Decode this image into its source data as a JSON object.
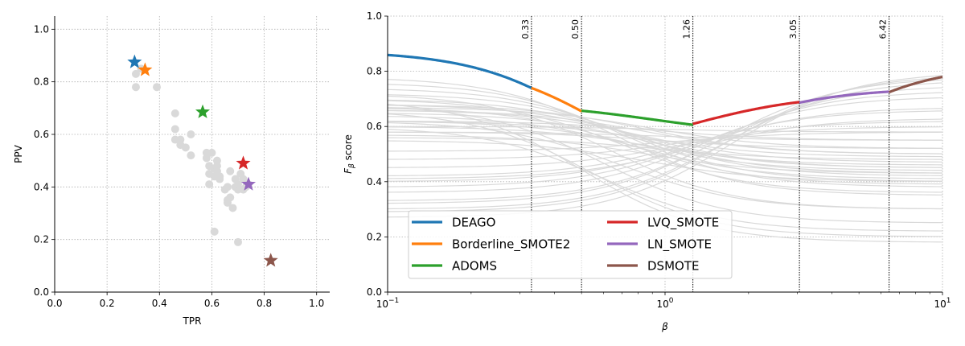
{
  "chart_data": [
    {
      "type": "scatter",
      "xlabel": "TPR",
      "ylabel": "PPV",
      "xlim": [
        0,
        1.05
      ],
      "ylim": [
        0,
        1.05
      ],
      "xticks": [
        "0.0",
        "0.2",
        "0.4",
        "0.6",
        "0.8",
        "1.0"
      ],
      "yticks": [
        "0.0",
        "0.2",
        "0.4",
        "0.6",
        "0.8",
        "1.0"
      ],
      "grid": true,
      "background_color": "#d9d9d9",
      "background_points": [
        [
          0.31,
          0.78
        ],
        [
          0.31,
          0.83
        ],
        [
          0.33,
          0.85
        ],
        [
          0.39,
          0.78
        ],
        [
          0.46,
          0.68
        ],
        [
          0.46,
          0.62
        ],
        [
          0.46,
          0.58
        ],
        [
          0.48,
          0.58
        ],
        [
          0.48,
          0.56
        ],
        [
          0.5,
          0.55
        ],
        [
          0.52,
          0.6
        ],
        [
          0.52,
          0.52
        ],
        [
          0.58,
          0.53
        ],
        [
          0.58,
          0.51
        ],
        [
          0.59,
          0.48
        ],
        [
          0.59,
          0.45
        ],
        [
          0.6,
          0.53
        ],
        [
          0.59,
          0.41
        ],
        [
          0.61,
          0.47
        ],
        [
          0.61,
          0.44
        ],
        [
          0.62,
          0.5
        ],
        [
          0.62,
          0.48
        ],
        [
          0.62,
          0.46
        ],
        [
          0.63,
          0.44
        ],
        [
          0.63,
          0.43
        ],
        [
          0.65,
          0.39
        ],
        [
          0.66,
          0.4
        ],
        [
          0.66,
          0.34
        ],
        [
          0.67,
          0.46
        ],
        [
          0.67,
          0.36
        ],
        [
          0.68,
          0.32
        ],
        [
          0.69,
          0.4
        ],
        [
          0.69,
          0.43
        ],
        [
          0.7,
          0.39
        ],
        [
          0.7,
          0.41
        ],
        [
          0.71,
          0.45
        ],
        [
          0.72,
          0.43
        ],
        [
          0.72,
          0.39
        ],
        [
          0.73,
          0.4
        ],
        [
          0.74,
          0.41
        ],
        [
          0.61,
          0.23
        ],
        [
          0.7,
          0.19
        ],
        [
          0.66,
          0.35
        ]
      ],
      "series": [
        {
          "name": "DEAGO",
          "color": "#1f77b4",
          "x": 0.305,
          "y": 0.875,
          "marker": "star"
        },
        {
          "name": "Borderline_SMOTE2",
          "color": "#ff7f0e",
          "x": 0.345,
          "y": 0.845,
          "marker": "star"
        },
        {
          "name": "ADOMS",
          "color": "#2ca02c",
          "x": 0.565,
          "y": 0.685,
          "marker": "star"
        },
        {
          "name": "LVQ_SMOTE",
          "color": "#d62728",
          "x": 0.72,
          "y": 0.49,
          "marker": "star"
        },
        {
          "name": "LN_SMOTE",
          "color": "#9467bd",
          "x": 0.74,
          "y": 0.41,
          "marker": "star"
        },
        {
          "name": "DSMOTE",
          "color": "#8c564b",
          "x": 0.825,
          "y": 0.12,
          "marker": "star"
        }
      ]
    },
    {
      "type": "line",
      "xlabel": "β",
      "ylabel": "F_β score",
      "x_scale": "log",
      "xlim": [
        0.1,
        10
      ],
      "ylim": [
        0.0,
        1.0
      ],
      "xticks": [
        {
          "value": 0.1,
          "base": "10",
          "exp": "−1"
        },
        {
          "value": 1,
          "base": "10",
          "exp": "0"
        },
        {
          "value": 10,
          "base": "10",
          "exp": "1"
        }
      ],
      "yticks": [
        "0.0",
        "0.2",
        "0.4",
        "0.6",
        "0.8",
        "1.0"
      ],
      "grid": true,
      "background_color": "#d9d9d9",
      "background_curves": [
        [
          0.35,
          0.78
        ],
        [
          0.4,
          0.74
        ],
        [
          0.43,
          0.7
        ],
        [
          0.45,
          0.68
        ],
        [
          0.42,
          0.72
        ],
        [
          0.5,
          0.68
        ],
        [
          0.47,
          0.66
        ],
        [
          0.38,
          0.76
        ],
        [
          0.44,
          0.62
        ],
        [
          0.41,
          0.64
        ],
        [
          0.52,
          0.58
        ],
        [
          0.46,
          0.6
        ],
        [
          0.39,
          0.67
        ],
        [
          0.36,
          0.7
        ],
        [
          0.48,
          0.56
        ],
        [
          0.55,
          0.58
        ],
        [
          0.49,
          0.62
        ],
        [
          0.43,
          0.57
        ],
        [
          0.4,
          0.55
        ],
        [
          0.58,
          0.51
        ],
        [
          0.6,
          0.48
        ],
        [
          0.62,
          0.45
        ],
        [
          0.66,
          0.42
        ],
        [
          0.63,
          0.41
        ],
        [
          0.67,
          0.4
        ],
        [
          0.71,
          0.38
        ],
        [
          0.73,
          0.36
        ],
        [
          0.75,
          0.33
        ],
        [
          0.77,
          0.3
        ],
        [
          0.78,
          0.32
        ],
        [
          0.79,
          0.29
        ],
        [
          0.8,
          0.27
        ],
        [
          0.5,
          0.66
        ],
        [
          0.45,
          0.65
        ],
        [
          0.55,
          0.62
        ],
        [
          0.52,
          0.67
        ],
        [
          0.58,
          0.6
        ],
        [
          0.3,
          0.72
        ],
        [
          0.25,
          0.68
        ],
        [
          0.18,
          0.7
        ],
        [
          0.2,
          0.66
        ],
        [
          0.22,
          0.6
        ],
        [
          0.3,
          0.62
        ]
      ],
      "series": [
        {
          "name": "DEAGO",
          "color": "#1f77b4",
          "tpr": 0.305,
          "ppv": 0.875,
          "beta_range": [
            0.1,
            0.33
          ]
        },
        {
          "name": "Borderline_SMOTE2",
          "color": "#ff7f0e",
          "tpr": 0.345,
          "ppv": 0.845,
          "beta_range": [
            0.33,
            0.5
          ]
        },
        {
          "name": "ADOMS",
          "color": "#2ca02c",
          "tpr": 0.565,
          "ppv": 0.685,
          "beta_range": [
            0.5,
            1.26
          ]
        },
        {
          "name": "LVQ_SMOTE",
          "color": "#d62728",
          "tpr": 0.72,
          "ppv": 0.49,
          "beta_range": [
            1.26,
            3.05
          ]
        },
        {
          "name": "LN_SMOTE",
          "color": "#9467bd",
          "tpr": 0.74,
          "ppv": 0.41,
          "beta_range": [
            3.05,
            6.42
          ]
        },
        {
          "name": "DSMOTE",
          "color": "#8c564b",
          "tpr": 0.825,
          "ppv": 0.12,
          "beta_range": [
            6.42,
            10
          ]
        }
      ],
      "vlines": [
        {
          "value": 0.33,
          "label": "0.33"
        },
        {
          "value": 0.5,
          "label": "0.50"
        },
        {
          "value": 1.26,
          "label": "1.26"
        },
        {
          "value": 3.05,
          "label": "3.05"
        },
        {
          "value": 6.42,
          "label": "6.42"
        }
      ],
      "legend": {
        "placement": "lower-left",
        "columns": 2,
        "entries": [
          "DEAGO",
          "Borderline_SMOTE2",
          "ADOMS",
          "LVQ_SMOTE",
          "LN_SMOTE",
          "DSMOTE"
        ]
      }
    }
  ]
}
